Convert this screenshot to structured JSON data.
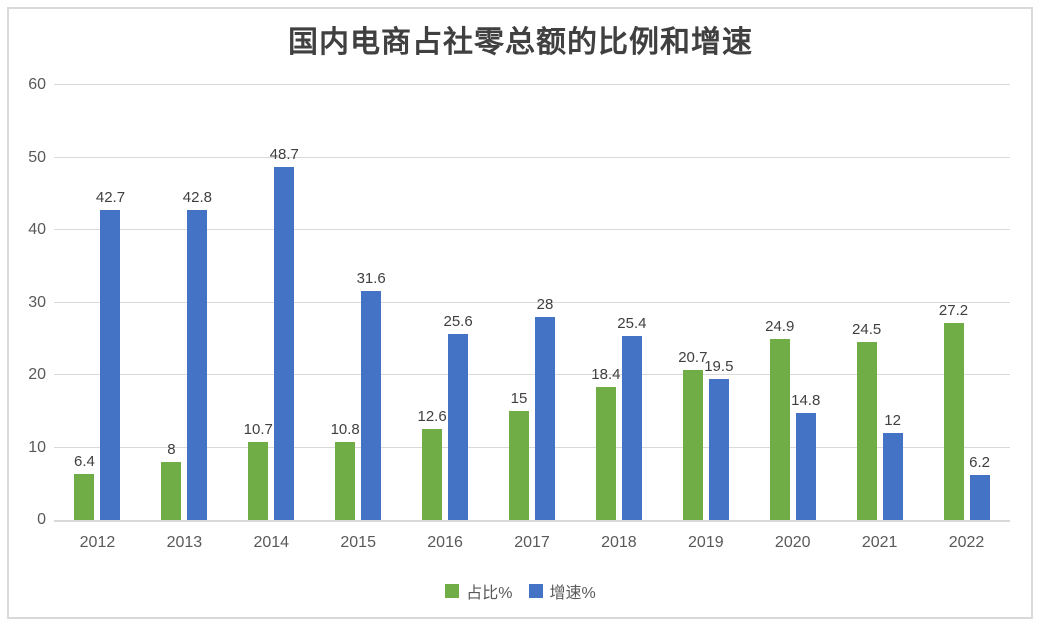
{
  "chart_data": {
    "type": "bar",
    "title": "国内电商占社零总额的比例和增速",
    "categories": [
      "2012",
      "2013",
      "2014",
      "2015",
      "2016",
      "2017",
      "2018",
      "2019",
      "2020",
      "2021",
      "2022"
    ],
    "series": [
      {
        "name": "占比%",
        "color": "#70AD47",
        "values": [
          6.4,
          8,
          10.7,
          10.8,
          12.6,
          15,
          18.4,
          20.7,
          24.9,
          24.5,
          27.2
        ]
      },
      {
        "name": "增速%",
        "color": "#4472C4",
        "values": [
          42.7,
          42.8,
          48.7,
          31.6,
          25.6,
          28,
          25.4,
          19.5,
          14.8,
          12,
          6.2
        ]
      }
    ],
    "ylim": [
      0,
      60
    ],
    "y_ticks": [
      0,
      10,
      20,
      30,
      40,
      50,
      60
    ],
    "grid": true,
    "data_labels": true,
    "legend_position": "bottom",
    "colors": {
      "grid": "#D9D9D9",
      "axis_text": "#595959",
      "data_label_text": "#404040",
      "title_text": "#404040",
      "frame_border": "#D9D9D9"
    }
  }
}
